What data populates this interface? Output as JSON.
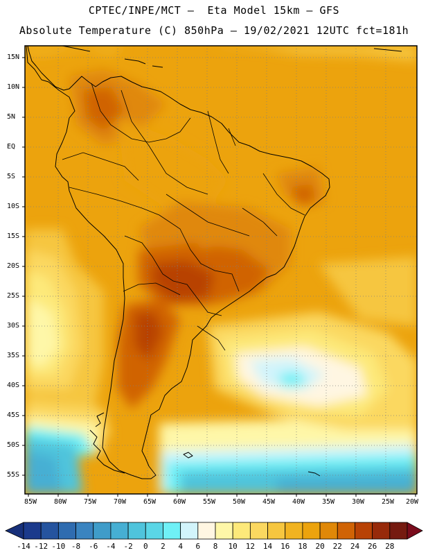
{
  "header": {
    "line1": "CPTEC/INPE/MCT –  Eta Model 15km – GFS",
    "line2": "Absolute Temperature (C) 850hPa – 19/02/2021 12UTC fct=181h"
  },
  "map": {
    "lat_labels": [
      "15N",
      "10N",
      "5N",
      "EQ",
      "5S",
      "10S",
      "15S",
      "20S",
      "25S",
      "30S",
      "35S",
      "40S",
      "45S",
      "50S",
      "55S"
    ],
    "lon_labels": [
      "85W",
      "80W",
      "75W",
      "70W",
      "65W",
      "60W",
      "55W",
      "50W",
      "45W",
      "40W",
      "35W",
      "30W",
      "25W",
      "20W"
    ]
  },
  "colorbar": {
    "labels": [
      "-14",
      "-12",
      "-10",
      "-8",
      "-6",
      "-4",
      "-2",
      "0",
      "2",
      "4",
      "6",
      "8",
      "10",
      "12",
      "14",
      "16",
      "18",
      "20",
      "22",
      "24",
      "26",
      "28"
    ],
    "colors": [
      "#1b3a8c",
      "#25549f",
      "#2f6cb0",
      "#3a84c0",
      "#3f9cc9",
      "#46afd3",
      "#4fc4dc",
      "#5ad6e6",
      "#6ff0f6",
      "#d2f4fb",
      "#fff6e2",
      "#fef7a8",
      "#fde97a",
      "#fbd860",
      "#f6c63f",
      "#f1b320",
      "#eca30d",
      "#e08808",
      "#d06305",
      "#b84205",
      "#972a0a",
      "#751a10"
    ],
    "under_color": "#17307a",
    "over_color": "#7a0b1c"
  }
}
